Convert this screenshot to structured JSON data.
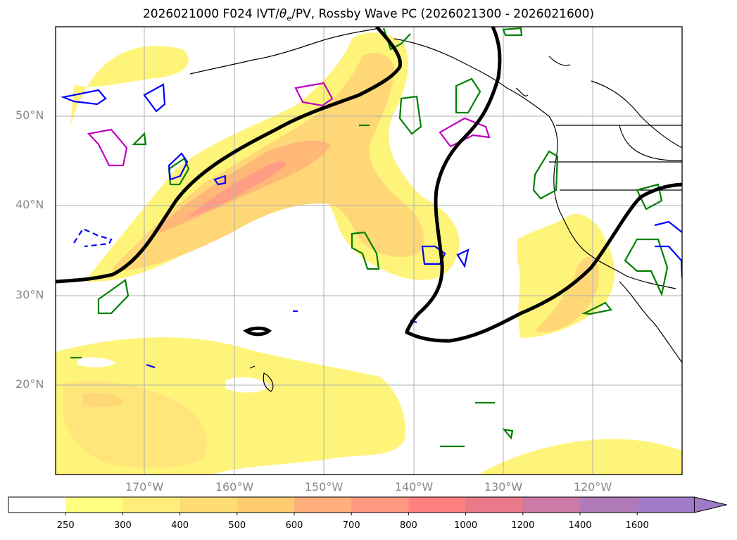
{
  "title": {
    "run": "2026021000",
    "forecast": "F024",
    "fields_prefix": "IVT/",
    "fields_theta": "θ",
    "fields_sub": "e",
    "fields_suffix": "/PV, Rossby Wave PC (2026021300 - 2026021600)"
  },
  "axes": {
    "lat_labels": [
      "50°N",
      "40°N",
      "30°N",
      "20°N"
    ],
    "lon_labels": [
      "170°W",
      "160°W",
      "150°W",
      "140°W",
      "130°W",
      "120°W"
    ]
  },
  "colorbar": {
    "ticks": [
      "250",
      "300",
      "400",
      "500",
      "600",
      "700",
      "800",
      "1000",
      "1200",
      "1400",
      "1600"
    ],
    "colors": [
      "#ffffff",
      "#ffff80",
      "#ffee7a",
      "#ffdd75",
      "#ffcc70",
      "#ffb07a",
      "#ff9980",
      "#ff8080",
      "#e87a8a",
      "#cc7aa6",
      "#b07ab8",
      "#a07cc8"
    ]
  },
  "legend_colors": {
    "ivt_fill_low": "#fff47a",
    "ivt_fill_mid": "#ffd777",
    "ivt_fill_high": "#ff9d85",
    "rossby_wave": "#000000",
    "theta_e": "#008000",
    "pv_positive": "#0000ff",
    "pv_magenta": "#c000c0"
  }
}
